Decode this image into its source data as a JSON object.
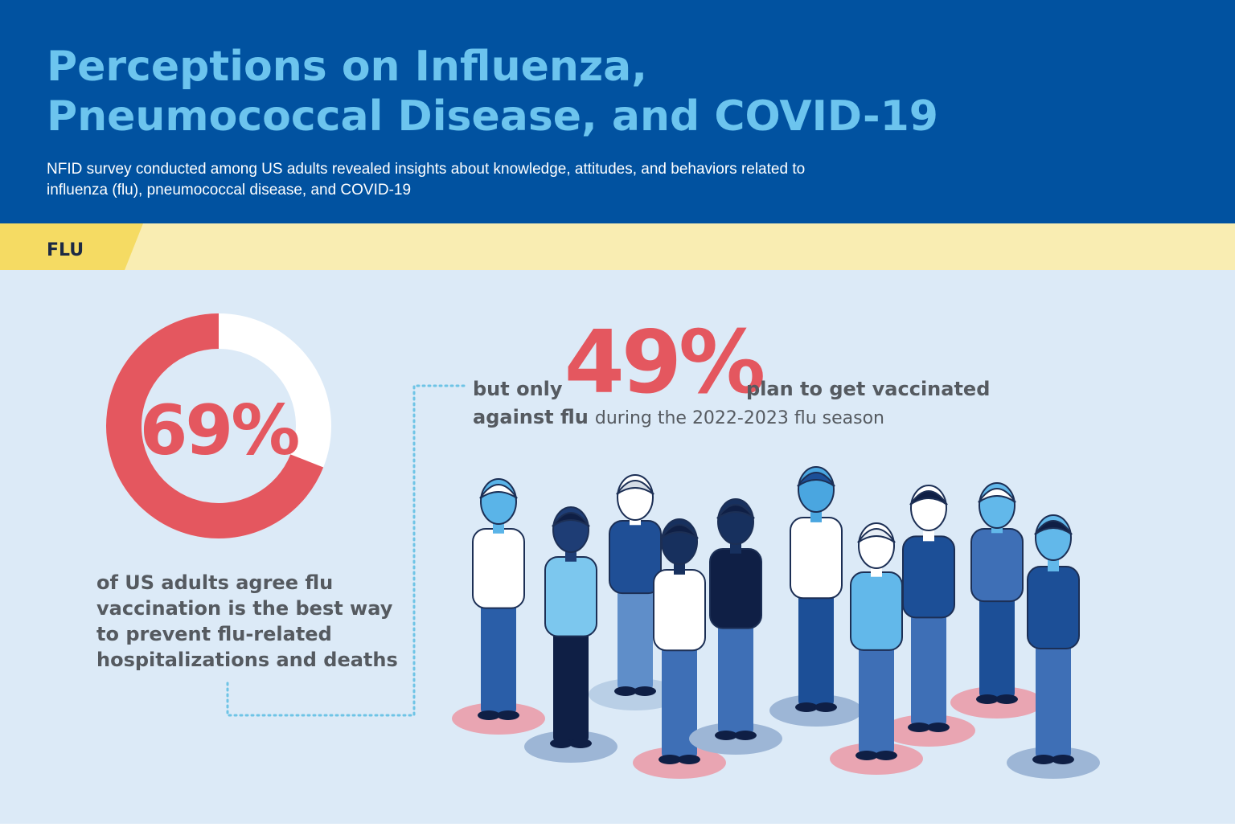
{
  "header": {
    "title_lines": [
      "Perceptions on Influenza,",
      "Pneumococcal Disease, and COVID-19"
    ],
    "subtitle_lines": [
      "NFID survey conducted among US adults revealed insights about knowledge, attitudes, and behaviors related to",
      "influenza (flu), pneumococcal disease, and COVID-19"
    ]
  },
  "section": "FLU",
  "stat_agree": {
    "value": 69,
    "label": "69%",
    "text_lines": [
      "of US adults agree flu",
      "vaccination is the best way",
      "to prevent flu-related",
      "hospitalizations and deaths"
    ]
  },
  "stat_plan": {
    "value": 49,
    "label": "49%",
    "lead": "but only",
    "tail": "plan to get vaccinated",
    "bold_start": "against flu",
    "rest": "during the 2022-2023 flu season"
  }
}
